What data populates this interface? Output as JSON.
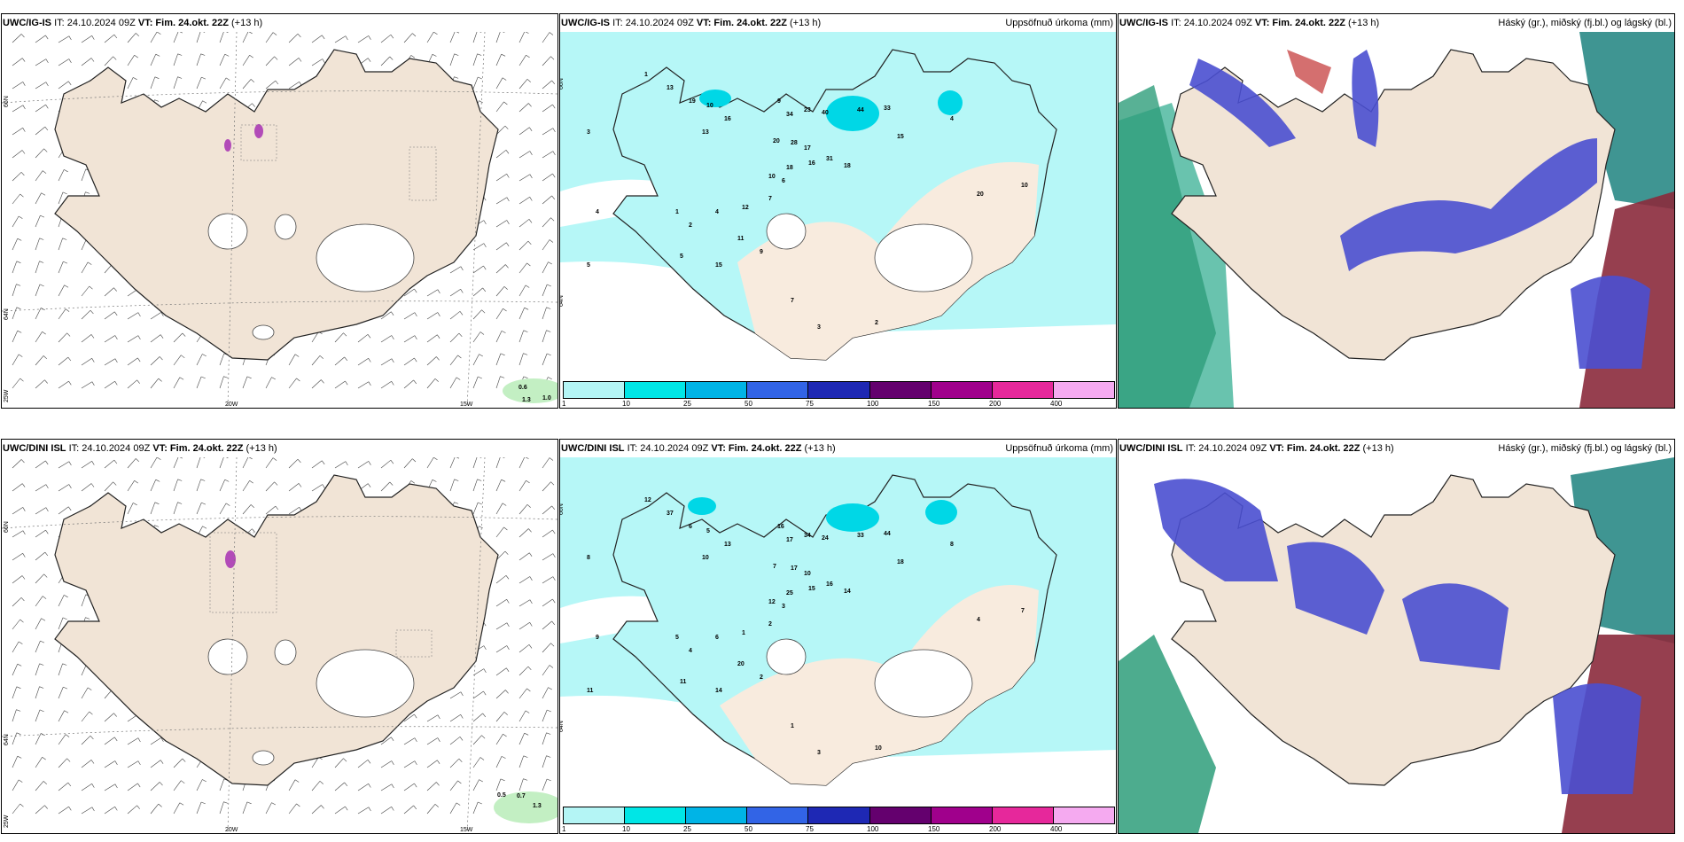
{
  "rows": [
    {
      "model": "UWC/IG-IS",
      "it": "IT: 24.10.2024 09Z",
      "vt": "VT: Fim. 24.okt. 22Z",
      "lead": "(+13 h)"
    },
    {
      "model": "UWC/DINI ISL",
      "it": "IT: 24.10.2024 09Z",
      "vt": "VT: Fim. 24.okt. 22Z",
      "lead": "(+13 h)"
    }
  ],
  "precip_title": "Uppsöfnuð úrkoma (mm)",
  "cloud_title": "Háský (gr.), miðský (fj.bl.) og lágský (bl.)",
  "axis_labels": {
    "lat_top": "66N",
    "lat_bottom": "64N",
    "lon_left": "25W",
    "lon_mid": "20W",
    "lon_right": "15W"
  },
  "colorbar": {
    "ticks": [
      "1",
      "10",
      "25",
      "50",
      "75",
      "100",
      "150",
      "200",
      "400"
    ],
    "colors": [
      "#b4f5f5",
      "#00e6e6",
      "#00b4e6",
      "#3264e6",
      "#1e28b4",
      "#64006e",
      "#a0008c",
      "#e6289b",
      "#f5aaf0"
    ]
  },
  "wind_labels_top": [
    "0.6",
    "1.3",
    "1.0"
  ],
  "wind_labels_bottom": [
    "0.5",
    "0.7",
    "1.3"
  ],
  "precip_values_top": [
    "3",
    "4",
    "5",
    "1",
    "13",
    "19",
    "10",
    "16",
    "13",
    "9",
    "34",
    "23",
    "40",
    "44",
    "33",
    "15",
    "18",
    "31",
    "18",
    "20",
    "28",
    "17",
    "16",
    "10",
    "6",
    "7",
    "12",
    "4",
    "2",
    "1",
    "5",
    "15",
    "11",
    "9",
    "7",
    "3",
    "2",
    "4",
    "10",
    "20"
  ],
  "precip_values_bottom": [
    "8",
    "9",
    "11",
    "12",
    "37",
    "6",
    "5",
    "13",
    "10",
    "16",
    "17",
    "34",
    "24",
    "33",
    "44",
    "18",
    "25",
    "16",
    "14",
    "7",
    "17",
    "10",
    "15",
    "12",
    "3",
    "2",
    "1",
    "6",
    "4",
    "5",
    "11",
    "14",
    "20",
    "2",
    "1",
    "3",
    "10",
    "8",
    "7",
    "4"
  ]
}
